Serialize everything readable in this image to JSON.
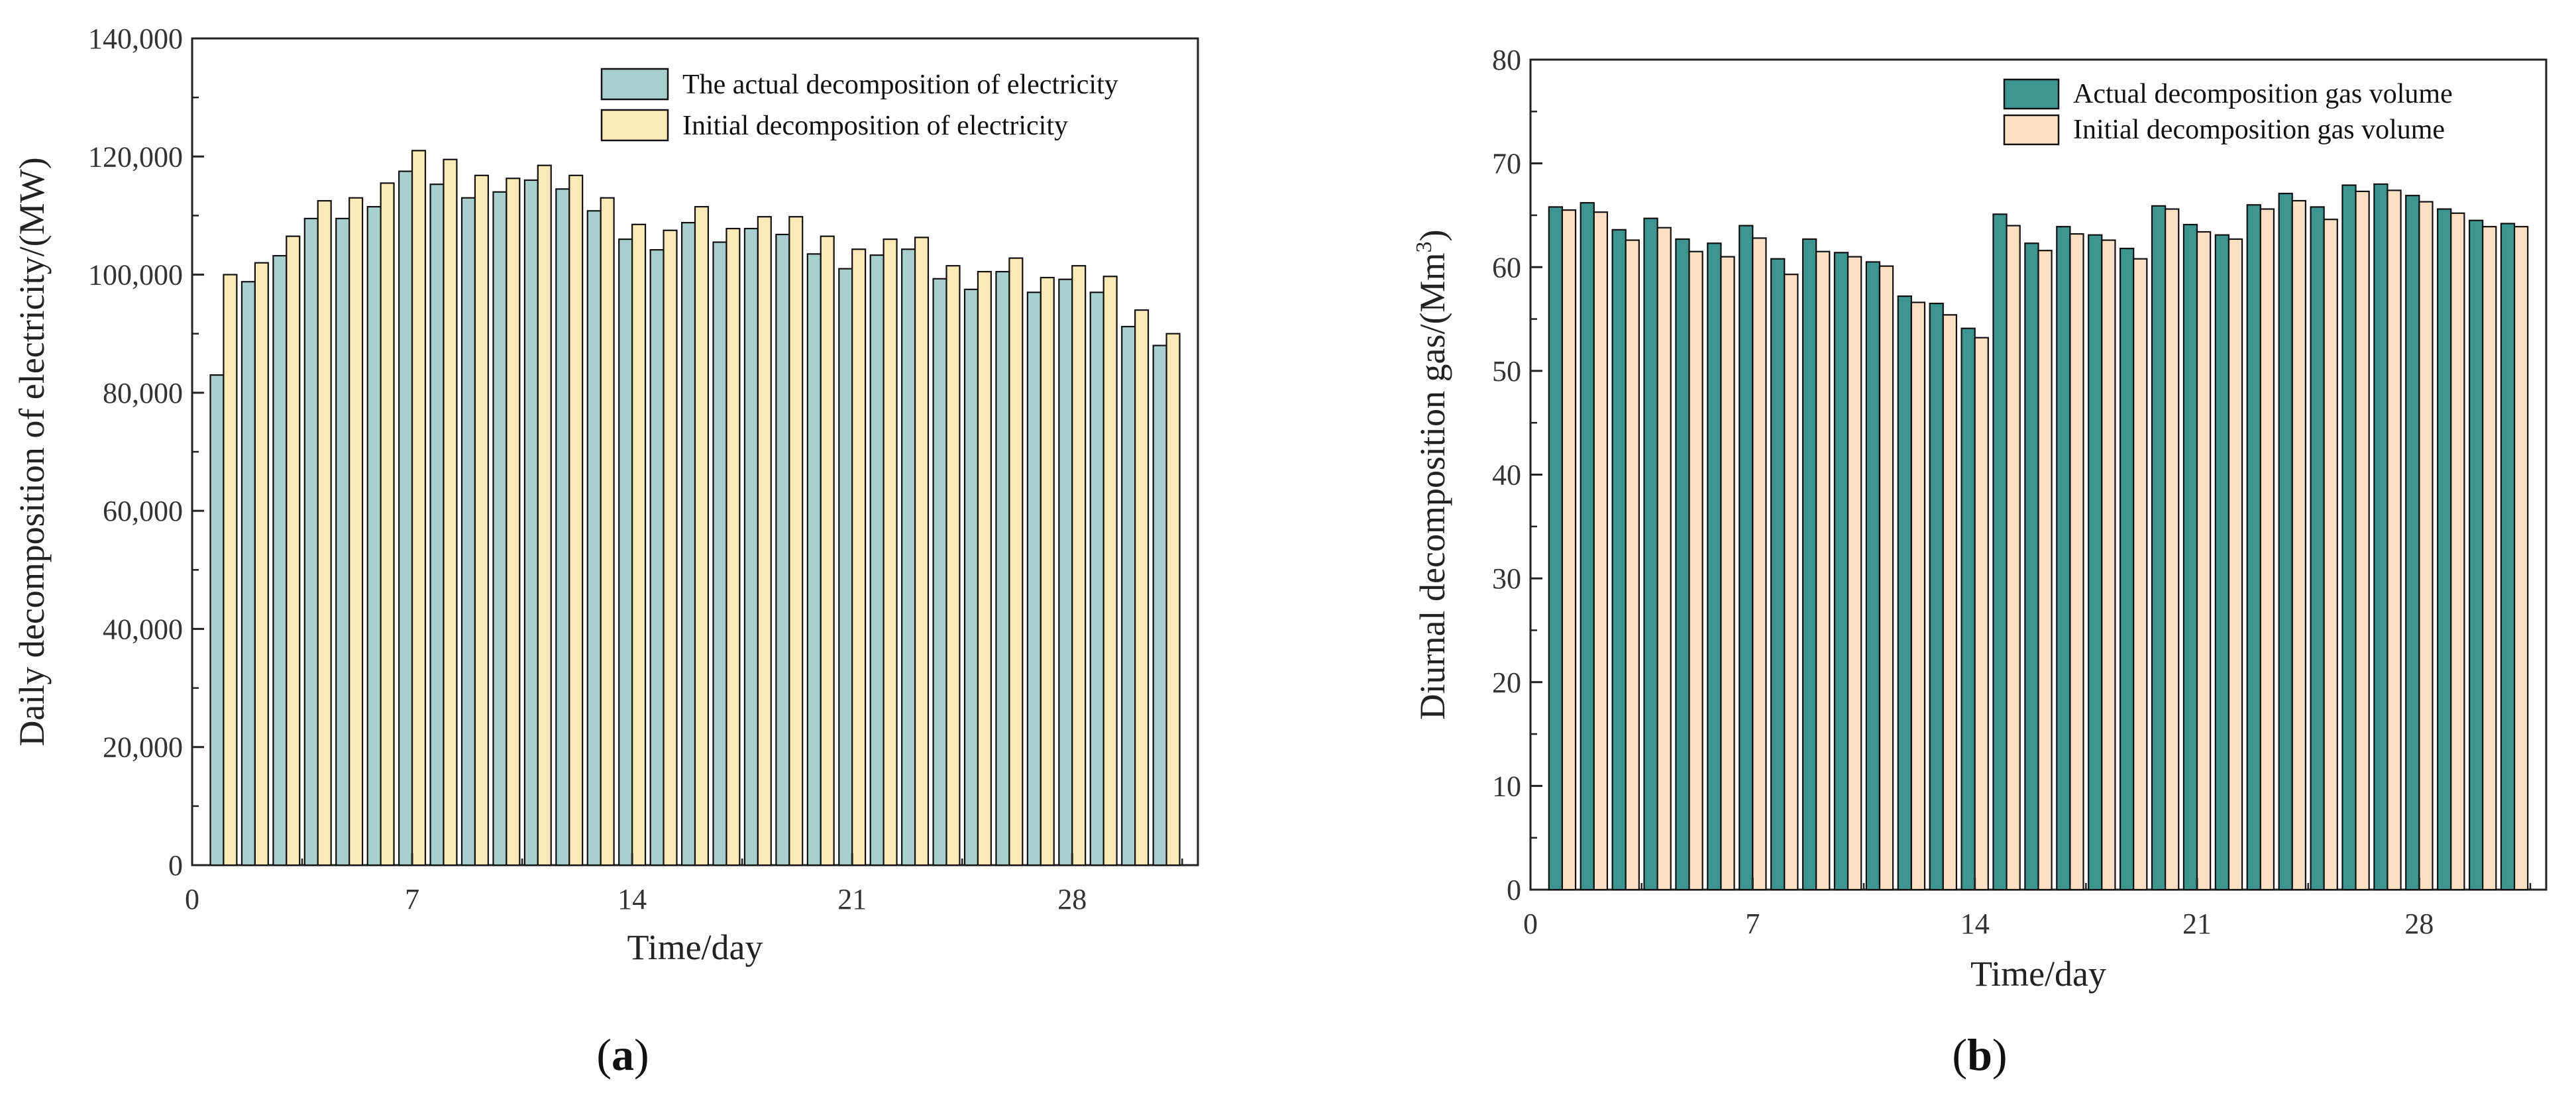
{
  "chart_data": [
    {
      "type": "bar",
      "panel_label": "a",
      "xlabel": "Time/day",
      "ylabel": "Daily decomposition of electricity/(MW)",
      "xlim": [
        0,
        32
      ],
      "ylim": [
        0,
        140000
      ],
      "xticks": [
        0,
        7,
        14,
        21,
        28
      ],
      "xtick_labels": [
        "0",
        "7",
        "14",
        "21",
        "28"
      ],
      "yticks": [
        0,
        20000,
        40000,
        60000,
        80000,
        100000,
        120000,
        140000
      ],
      "ytick_labels": [
        "0",
        "20,000",
        "40,000",
        "60,000",
        "80,000",
        "100,000",
        "120,000",
        "140,000"
      ],
      "legend_position": "top-right",
      "categories": [
        1,
        2,
        3,
        4,
        5,
        6,
        7,
        8,
        9,
        10,
        11,
        12,
        13,
        14,
        15,
        16,
        17,
        18,
        19,
        20,
        21,
        22,
        23,
        24,
        25,
        26,
        27,
        28,
        29,
        30,
        31
      ],
      "series": [
        {
          "name": "The actual decomposition of electricity",
          "color": "#a9cfcd",
          "values": [
            83000,
            98800,
            103200,
            109500,
            109500,
            111500,
            117500,
            115300,
            113000,
            114000,
            116000,
            114500,
            110800,
            106000,
            104200,
            108800,
            105500,
            107800,
            106800,
            103500,
            101000,
            103300,
            104300,
            99300,
            97500,
            100500,
            97000,
            99200,
            97000,
            91200,
            88000
          ]
        },
        {
          "name": "Initial decomposition of electricity",
          "color": "#fbeab8",
          "values": [
            100000,
            102000,
            106500,
            112500,
            113000,
            115500,
            121000,
            119500,
            116800,
            116300,
            118500,
            116800,
            113000,
            108500,
            107500,
            111500,
            107800,
            109800,
            109800,
            106500,
            104300,
            106000,
            106300,
            101500,
            100500,
            102800,
            99500,
            101500,
            99700,
            94000,
            90000
          ]
        }
      ]
    },
    {
      "type": "bar",
      "panel_label": "b",
      "xlabel": "Time/day",
      "ylabel_main": "Diurnal decomposition gas/(Mm",
      "ylabel_sup": "3",
      "ylabel_end": ")",
      "xlim": [
        0,
        32
      ],
      "ylim": [
        0,
        80
      ],
      "xticks": [
        0,
        7,
        14,
        21,
        28
      ],
      "xtick_labels": [
        "0",
        "7",
        "14",
        "21",
        "28"
      ],
      "yticks": [
        0,
        10,
        20,
        30,
        40,
        50,
        60,
        70,
        80
      ],
      "ytick_labels": [
        "0",
        "10",
        "20",
        "30",
        "40",
        "50",
        "60",
        "70",
        "80"
      ],
      "legend_position": "top-right",
      "categories": [
        1,
        2,
        3,
        4,
        5,
        6,
        7,
        8,
        9,
        10,
        11,
        12,
        13,
        14,
        15,
        16,
        17,
        18,
        19,
        20,
        21,
        22,
        23,
        24,
        25,
        26,
        27,
        28,
        29,
        30,
        31
      ],
      "series": [
        {
          "name": "Actual decomposition gas volume",
          "color": "#3d9592",
          "values": [
            65.8,
            66.2,
            63.6,
            64.7,
            62.7,
            62.3,
            64.0,
            60.8,
            62.7,
            61.4,
            60.5,
            57.2,
            56.5,
            54.1,
            65.1,
            62.3,
            63.9,
            63.1,
            61.8,
            65.9,
            64.1,
            63.1,
            66.0,
            67.1,
            65.8,
            67.9,
            68.0,
            66.9,
            65.6,
            64.5,
            64.2
          ]
        },
        {
          "name": "Initial decomposition gas volume",
          "color": "#fbe0c4",
          "values": [
            65.5,
            65.3,
            62.6,
            63.8,
            61.5,
            61.0,
            62.8,
            59.3,
            61.5,
            61.0,
            60.1,
            56.6,
            55.4,
            53.2,
            64.0,
            61.6,
            63.2,
            62.6,
            60.8,
            65.6,
            63.4,
            62.7,
            65.6,
            66.4,
            64.6,
            67.3,
            67.4,
            66.3,
            65.2,
            63.9,
            63.9
          ]
        }
      ]
    }
  ]
}
